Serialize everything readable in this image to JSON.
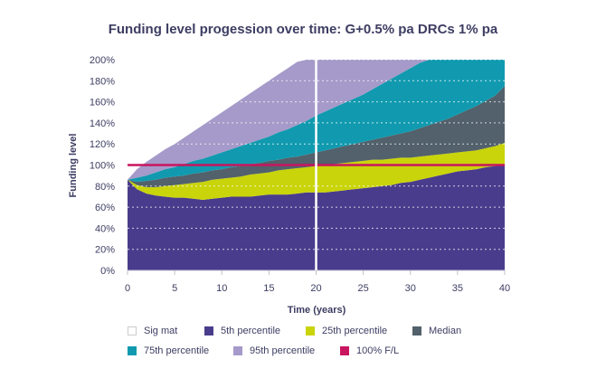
{
  "chart_data": {
    "type": "area",
    "title": "Funding level progession over time: G+0.5% pa DRCs 1% pa",
    "xlabel": "Time (years)",
    "ylabel": "Funding level",
    "xlim": [
      0,
      40
    ],
    "ylim": [
      0,
      200
    ],
    "x_ticks": [
      "0",
      "5",
      "10",
      "15",
      "20",
      "25",
      "30",
      "35",
      "40"
    ],
    "y_ticks": [
      "0%",
      "20%",
      "40%",
      "60%",
      "80%",
      "100%",
      "120%",
      "140%",
      "160%",
      "180%",
      "200%"
    ],
    "grid": "horizontal-dotted",
    "vertical_marker": {
      "label": "Sig mat",
      "x": 20
    },
    "x": [
      0,
      1,
      2,
      3,
      4,
      5,
      6,
      7,
      8,
      9,
      10,
      11,
      12,
      13,
      14,
      15,
      16,
      17,
      18,
      19,
      20,
      21,
      22,
      23,
      24,
      25,
      26,
      27,
      28,
      29,
      30,
      31,
      32,
      33,
      34,
      35,
      36,
      37,
      38,
      39,
      40
    ],
    "series": [
      {
        "name": "5th percentile",
        "color": "#4a3c8c",
        "values": [
          86,
          77,
          73,
          71,
          70,
          69,
          69,
          68,
          67,
          68,
          69,
          70,
          70,
          70,
          71,
          72,
          72,
          72,
          73,
          74,
          74,
          74,
          75,
          76,
          77,
          78,
          79,
          80,
          81,
          83,
          84,
          86,
          88,
          90,
          92,
          94,
          95,
          96,
          98,
          99,
          101
        ]
      },
      {
        "name": "25th percentile",
        "color": "#c9d40a",
        "values": [
          86,
          81,
          79,
          79,
          80,
          81,
          82,
          83,
          84,
          86,
          87,
          88,
          89,
          91,
          92,
          93,
          95,
          96,
          97,
          98,
          99,
          100,
          101,
          102,
          103,
          104,
          105,
          105,
          106,
          107,
          107,
          108,
          109,
          110,
          111,
          112,
          113,
          114,
          116,
          118,
          121
        ]
      },
      {
        "name": "Median",
        "color": "#52616b",
        "values": [
          86,
          84,
          85,
          86,
          88,
          89,
          90,
          92,
          93,
          95,
          96,
          98,
          99,
          101,
          102,
          104,
          105,
          107,
          108,
          110,
          112,
          114,
          116,
          118,
          120,
          122,
          124,
          126,
          128,
          130,
          132,
          135,
          138,
          141,
          144,
          148,
          152,
          156,
          161,
          166,
          175
        ]
      },
      {
        "name": "75th percentile",
        "color": "#119aaf",
        "values": [
          86,
          88,
          90,
          93,
          96,
          98,
          101,
          104,
          106,
          109,
          112,
          115,
          118,
          121,
          124,
          127,
          131,
          134,
          138,
          142,
          147,
          151,
          155,
          159,
          163,
          167,
          172,
          177,
          182,
          187,
          192,
          197,
          200,
          200,
          200,
          200,
          200,
          200,
          200,
          200,
          200
        ]
      },
      {
        "name": "95th percentile",
        "color": "#a59ac9",
        "values": [
          86,
          96,
          103,
          109,
          115,
          120,
          126,
          132,
          138,
          144,
          150,
          156,
          162,
          168,
          174,
          180,
          186,
          192,
          198,
          200,
          200,
          200,
          200,
          200,
          200,
          200,
          200,
          200,
          200,
          200,
          200,
          200,
          200,
          200,
          200,
          200,
          200,
          200,
          200,
          200,
          200
        ]
      }
    ],
    "reference_line": {
      "name": "100% F/L",
      "value": 100,
      "color": "#c8155f"
    },
    "legend": {
      "placement": "bottom",
      "entries": [
        {
          "label": "Sig mat",
          "color": "#ffffff"
        },
        {
          "label": "5th percentile",
          "color": "#4a3c8c"
        },
        {
          "label": "25th percentile",
          "color": "#c9d40a"
        },
        {
          "label": "Median",
          "color": "#52616b"
        },
        {
          "label": "75th percentile",
          "color": "#119aaf"
        },
        {
          "label": "95th percentile",
          "color": "#a59ac9"
        },
        {
          "label": "100% F/L",
          "color": "#c8155f"
        }
      ]
    }
  }
}
